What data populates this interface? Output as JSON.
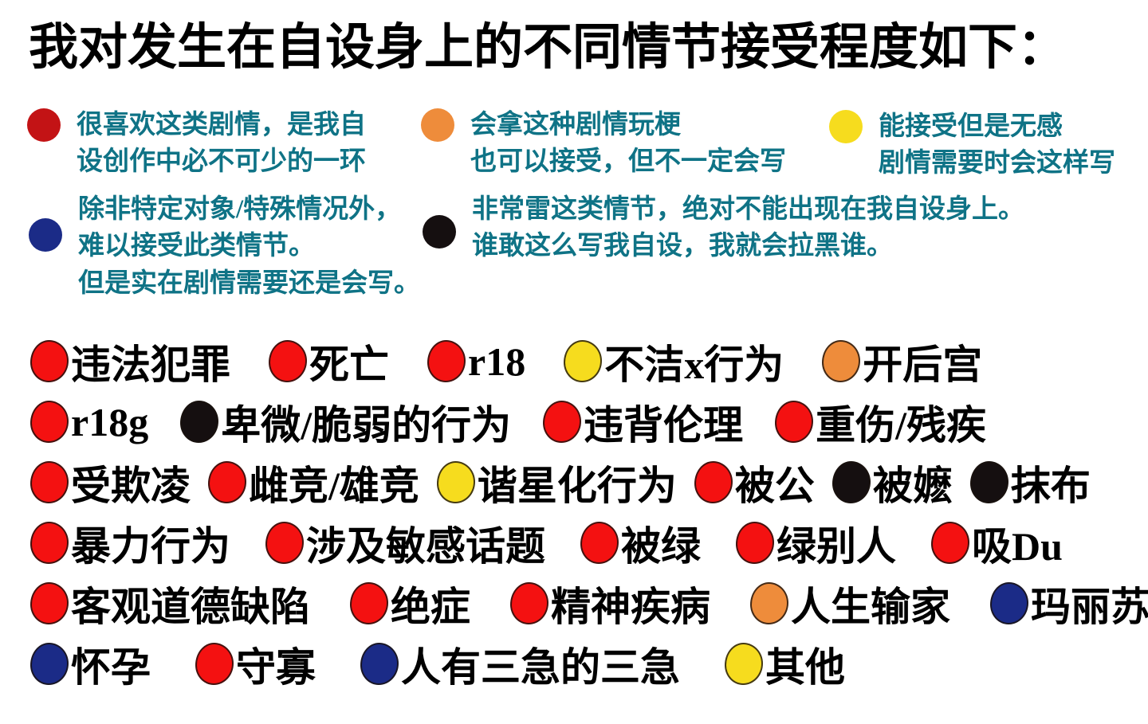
{
  "colors": {
    "background": "#ffffff",
    "title_text": "#000000",
    "legend_text": "#0f7386",
    "item_text": "#000000",
    "red_legend": "#c31315",
    "red": "#f41111",
    "orange": "#ee8c3b",
    "yellow": "#f6dc1e",
    "navy": "#1b2b87",
    "black": "#150f10"
  },
  "title": "我对发生在自设身上的不同情节接受程度如下：",
  "legend": [
    {
      "key": "favorite",
      "color": "red_legend",
      "lines": [
        "很喜欢这类剧情，是我自",
        "设创作中必不可少的一环"
      ]
    },
    {
      "key": "meme-acceptable",
      "color": "orange",
      "lines": [
        "会拿这种剧情玩梗",
        "也可以接受，但不一定会写"
      ]
    },
    {
      "key": "neutral-acceptable",
      "color": "yellow",
      "lines": [
        "能接受但是无感",
        "剧情需要时会这样写"
      ]
    },
    {
      "key": "hard-to-accept",
      "color": "navy",
      "lines": [
        "除非特定对象/特殊情况外，",
        "难以接受此类情节。",
        "但是实在剧情需要还是会写。"
      ]
    },
    {
      "key": "absolutely-not",
      "color": "black",
      "lines": [
        "非常雷这类情节，绝对不能出现在我自设身上。",
        "谁敢这么写我自设，我就会拉黑谁。"
      ]
    }
  ],
  "rows": [
    [
      {
        "color": "red",
        "label": "违法犯罪"
      },
      {
        "color": "red",
        "label": "死亡"
      },
      {
        "color": "red",
        "label": "r18"
      },
      {
        "color": "yellow",
        "label": "不洁x行为"
      },
      {
        "color": "orange",
        "label": "开后宫"
      }
    ],
    [
      {
        "color": "red",
        "label": "r18g"
      },
      {
        "color": "black",
        "label": "卑微/脆弱的行为"
      },
      {
        "color": "red",
        "label": "违背伦理"
      },
      {
        "color": "red",
        "label": "重伤/残疾"
      }
    ],
    [
      {
        "color": "red",
        "label": "受欺凌"
      },
      {
        "color": "red",
        "label": "雌竞/雄竞"
      },
      {
        "color": "yellow",
        "label": "谐星化行为"
      },
      {
        "color": "red",
        "label": "被公"
      },
      {
        "color": "black",
        "label": "被嬷"
      },
      {
        "color": "black",
        "label": "抹布"
      }
    ],
    [
      {
        "color": "red",
        "label": "暴力行为"
      },
      {
        "color": "red",
        "label": "涉及敏感话题"
      },
      {
        "color": "red",
        "label": "被绿"
      },
      {
        "color": "red",
        "label": "绿别人"
      },
      {
        "color": "red",
        "label": "吸Du"
      }
    ],
    [
      {
        "color": "red",
        "label": "客观道德缺陷"
      },
      {
        "color": "red",
        "label": "绝症"
      },
      {
        "color": "red",
        "label": "精神疾病"
      },
      {
        "color": "orange",
        "label": "人生输家"
      },
      {
        "color": "navy",
        "label": "玛丽苏"
      }
    ],
    [
      {
        "color": "navy",
        "label": "怀孕"
      },
      {
        "color": "red",
        "label": "守寡"
      },
      {
        "color": "navy",
        "label": "人有三急的三急"
      },
      {
        "color": "yellow",
        "label": "其他"
      }
    ]
  ]
}
